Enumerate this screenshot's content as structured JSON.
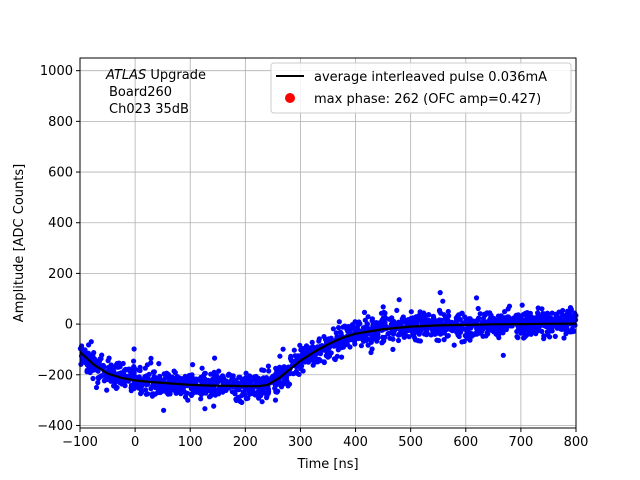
{
  "chart_data": {
    "type": "scatter",
    "title": "",
    "xlabel": "Time [ns]",
    "ylabel": "Amplitude [ADC Counts]",
    "xlim": [
      -100,
      800
    ],
    "ylim": [
      -410,
      1050
    ],
    "xticks": [
      -100,
      0,
      100,
      200,
      300,
      400,
      500,
      600,
      700,
      800
    ],
    "yticks": [
      -400,
      -200,
      0,
      200,
      400,
      600,
      800,
      1000
    ],
    "grid": true,
    "legend_position": "top-right",
    "annotation": {
      "italic": "ATLAS",
      "first_line_rest": " Upgrade",
      "lines": [
        "Board260",
        "Ch023 35dB"
      ]
    },
    "series": [
      {
        "name": "average interleaved pulse 0.036mA",
        "type": "line",
        "color": "#000000",
        "x": [
          -100,
          -75,
          -50,
          -25,
          0,
          25,
          50,
          75,
          100,
          125,
          150,
          175,
          200,
          225,
          240,
          260,
          280,
          300,
          325,
          350,
          375,
          400,
          450,
          500,
          550,
          600,
          650,
          700,
          750,
          800
        ],
        "y": [
          -110,
          -160,
          -195,
          -212,
          -222,
          -228,
          -232,
          -236,
          -240,
          -242,
          -243,
          -244,
          -245,
          -245,
          -240,
          -215,
          -180,
          -145,
          -110,
          -80,
          -55,
          -38,
          -20,
          -10,
          -5,
          -3,
          -1,
          0,
          1,
          2
        ]
      },
      {
        "name": "max phase: 262 (OFC amp=0.427)",
        "type": "scatter",
        "color": "#ff0000"
      },
      {
        "name": "",
        "type": "scatter-cloud",
        "color": "#0000ff",
        "noise_sigma": 25,
        "outlier_range": [
          -340,
          130
        ]
      }
    ]
  }
}
